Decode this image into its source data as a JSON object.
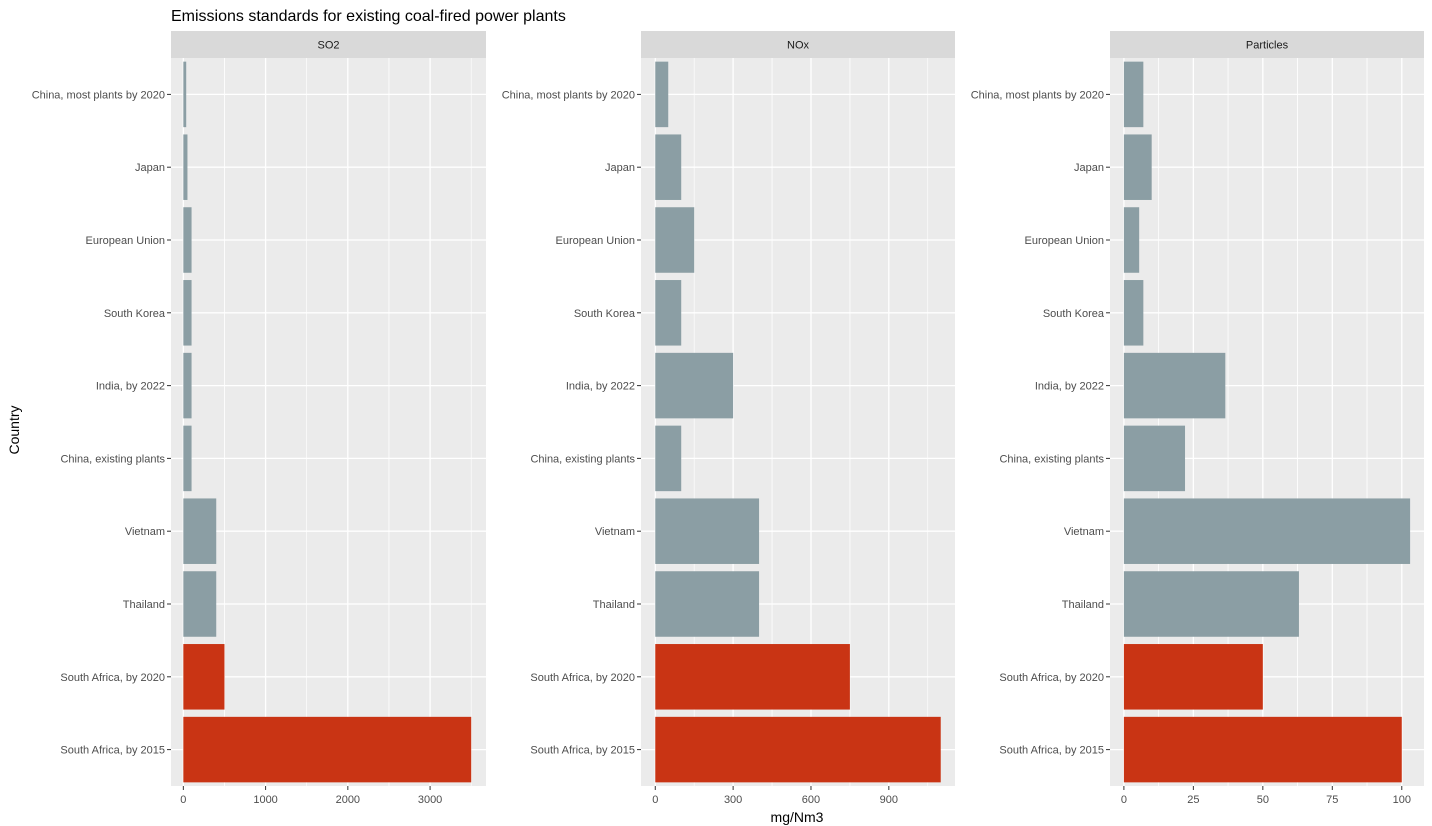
{
  "chart_data": {
    "type": "bar",
    "orientation": "horizontal",
    "title": "Emissions standards for existing coal-fired power plants",
    "xlabel": "mg/Nm3",
    "ylabel": "Country",
    "categories": [
      "China, most plants by 2020",
      "Japan",
      "European Union",
      "South Korea",
      "India, by 2022",
      "China, existing plants",
      "Vietnam",
      "Thailand",
      "South Africa, by 2020",
      "South Africa, by 2015"
    ],
    "colors": {
      "default": "#8B9EA4",
      "highlight": "#C93414",
      "panel_bg": "#EBEBEB",
      "strip_bg": "#D9D9D9",
      "grid": "#FFFFFF"
    },
    "highlighted_categories": [
      "South Africa, by 2020",
      "South Africa, by 2015"
    ],
    "grid": true,
    "panels": [
      {
        "name": "SO2",
        "xlim": [
          -150,
          3680
        ],
        "ticks": [
          0,
          1000,
          2000,
          3000
        ],
        "values": [
          35,
          50,
          100,
          100,
          100,
          100,
          400,
          400,
          500,
          3500
        ]
      },
      {
        "name": "NOx",
        "xlim": [
          -55,
          1155
        ],
        "ticks": [
          0,
          300,
          600,
          900
        ],
        "values": [
          50,
          100,
          150,
          100,
          300,
          100,
          400,
          400,
          750,
          1100
        ]
      },
      {
        "name": "Particles",
        "xlim": [
          -5,
          108
        ],
        "ticks": [
          0,
          25,
          50,
          75,
          100
        ],
        "values": [
          7,
          10,
          5.5,
          7,
          36.5,
          22,
          103,
          63,
          50,
          100
        ]
      }
    ]
  }
}
